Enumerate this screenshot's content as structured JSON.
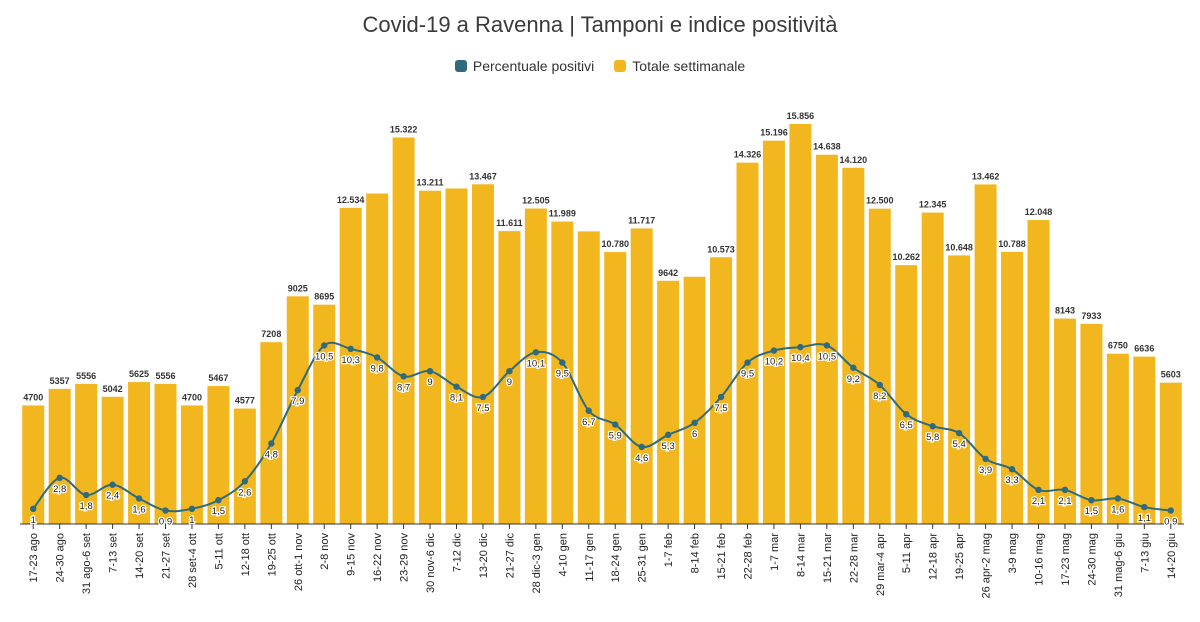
{
  "title": "Covid-19 a Ravenna | Tamponi e indice positività",
  "legend": [
    {
      "label": "Percentuale positivi",
      "color": "#2f6b7c"
    },
    {
      "label": "Totale settimanale",
      "color": "#f2b71f"
    }
  ],
  "chart_data": {
    "type": "bar",
    "categories": [
      "17-23 ago",
      "24-30 ago",
      "31 ago-6 set",
      "7-13 set",
      "14-20 set",
      "21-27 set",
      "28 set-4 ott",
      "5-11 ott",
      "12-18 ott",
      "19-25 ott",
      "26 ott-1 nov",
      "2-8 nov",
      "9-15 nov",
      "16-22 nov",
      "23-29 nov",
      "30 nov-6 dic",
      "7-12 dic",
      "13-20 dic",
      "21-27 dic",
      "28 dic-3 gen",
      "4-10 gen",
      "11-17 gen",
      "18-24 gen",
      "25-31 gen",
      "1-7 feb",
      "8-14 feb",
      "15-21 feb",
      "22-28 feb",
      "1-7 mar",
      "8-14 mar",
      "15-21 mar",
      "22-28 mar",
      "29 mar-4 apr",
      "5-11 apr",
      "12-18 apr",
      "19-25 apr",
      "26 apr-2 mag",
      "3-9 mag",
      "10-16 mag",
      "17-23 mag",
      "24-30 mag",
      "31 mag-6 giu",
      "7-13 giu",
      "14-20 giu"
    ],
    "series": [
      {
        "name": "Totale settimanale",
        "type": "bar",
        "color": "#f2b71f",
        "values": [
          4700,
          5357,
          5556,
          5042,
          5625,
          5556,
          4700,
          5467,
          4577,
          7208,
          9025,
          8695,
          12534,
          13100,
          15322,
          13211,
          13300,
          13467,
          11611,
          12505,
          11989,
          11600,
          10780,
          11717,
          9642,
          9800,
          10573,
          14326,
          15196,
          15856,
          14638,
          14120,
          12500,
          10262,
          12345,
          10648,
          13462,
          10788,
          12048,
          8143,
          7933,
          6750,
          6636,
          5603
        ],
        "labels": [
          "4700",
          "5357",
          "5556",
          "5042",
          "5625",
          "5556",
          "4700",
          "5467",
          "4577",
          "7208",
          "9025",
          "8695",
          "12.534",
          "",
          "15.322",
          "13.211",
          "",
          "13.467",
          "11.611",
          "12.505",
          "11.989",
          "",
          "10.780",
          "11.717",
          "9642",
          "",
          "10.573",
          "14.326",
          "15.196",
          "15.856",
          "14.638",
          "14.120",
          "12.500",
          "10.262",
          "12.345",
          "10.648",
          "13.462",
          "10.788",
          "12.048",
          "8143",
          "7933",
          "6750",
          "6636",
          "5603"
        ]
      },
      {
        "name": "Percentuale positivi",
        "type": "line",
        "color": "#2f6b7c",
        "values": [
          1,
          2.8,
          1.8,
          2.4,
          1.6,
          0.9,
          1,
          1.5,
          2.6,
          4.8,
          7.9,
          10.5,
          10.3,
          9.8,
          8.7,
          9,
          8.1,
          7.5,
          9,
          10.1,
          9.5,
          6.7,
          5.9,
          4.6,
          5.3,
          6,
          7.5,
          9.5,
          10.2,
          10.4,
          10.5,
          9.2,
          8.2,
          6.5,
          5.8,
          5.4,
          3.9,
          3.3,
          2.1,
          2.1,
          1.5,
          1.6,
          1.1,
          0.9
        ],
        "labels": [
          "1",
          "2,8",
          "1,8",
          "2,4",
          "1,6",
          "0,9",
          "1",
          "1,5",
          "2,6",
          "4,8",
          "7,9",
          "10,5",
          "10,3",
          "9,8",
          "8,7",
          "9",
          "8,1",
          "7,5",
          "9",
          "10,1",
          "9,5",
          "6,7",
          "5,9",
          "4,6",
          "5,3",
          "6",
          "7,5",
          "9,5",
          "10,2",
          "10,4",
          "10,5",
          "9,2",
          "8,2",
          "6,5",
          "5,8",
          "5,4",
          "3,9",
          "3,3",
          "2,1",
          "2,1",
          "1,5",
          "1,6",
          "1,1",
          "0,9"
        ]
      }
    ],
    "xlabel": "",
    "ylabel": "",
    "grid": false,
    "legend_position": "top-center"
  }
}
